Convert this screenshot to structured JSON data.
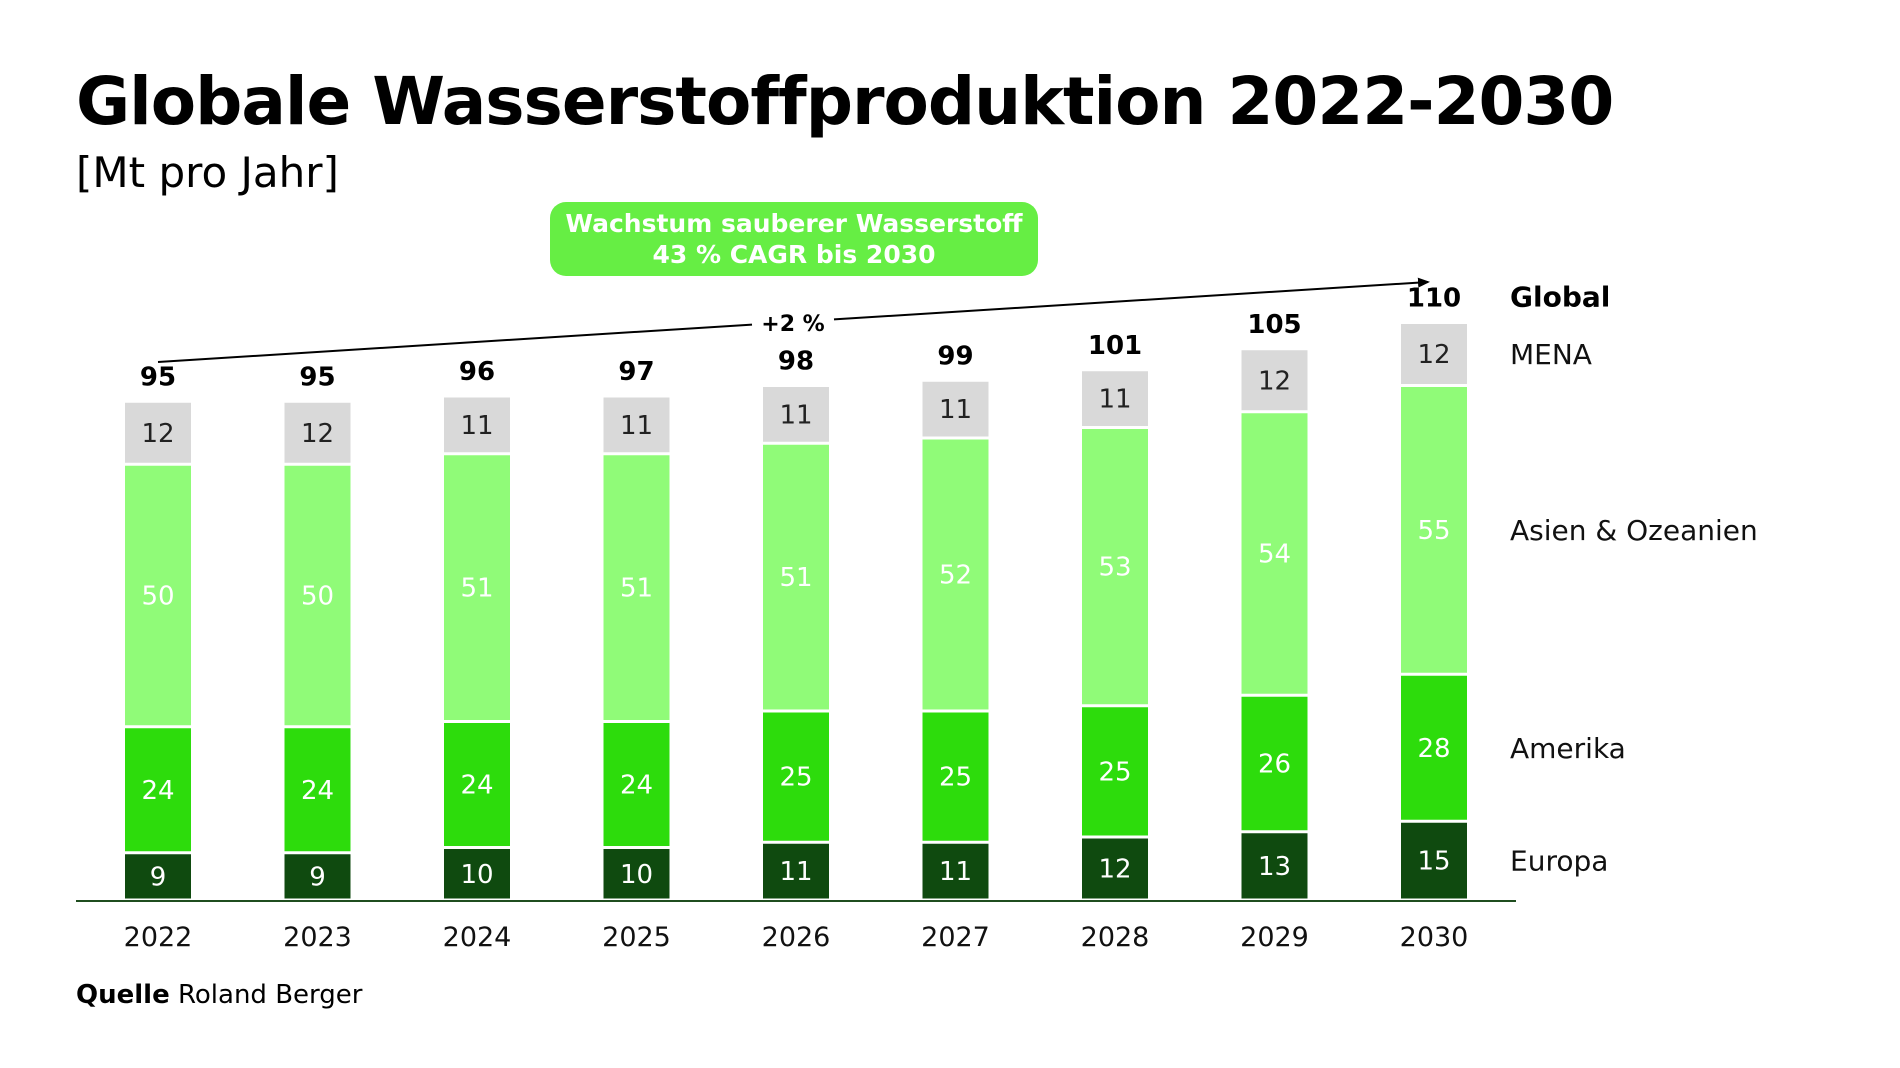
{
  "header": {
    "title": "Globale Wasserstoffproduktion 2022-2030",
    "subtitle": "[Mt pro Jahr]"
  },
  "callout": {
    "line1": "Wachstum sauberer Wasserstoff",
    "line2": "43 % CAGR bis 2030"
  },
  "footer": {
    "source_label": "Quelle",
    "source_value": "Roland Berger"
  },
  "colors": {
    "europa": "#0f4a0f",
    "amerika": "#2ddc0c",
    "asien": "#90fb78",
    "mena": "#d9d9d9",
    "callout": "#66ee44",
    "axis": "#1f4d1f"
  },
  "chart_data": {
    "type": "bar",
    "stacked": true,
    "title": "Globale Wasserstoffproduktion 2022-2030",
    "ylabel": "Mt pro Jahr",
    "categories": [
      "2022",
      "2023",
      "2024",
      "2025",
      "2026",
      "2027",
      "2028",
      "2029",
      "2030"
    ],
    "series": [
      {
        "name": "Europa",
        "values": [
          9,
          9,
          10,
          10,
          11,
          11,
          12,
          13,
          15
        ]
      },
      {
        "name": "Amerika",
        "values": [
          24,
          24,
          24,
          24,
          25,
          25,
          25,
          26,
          28
        ]
      },
      {
        "name": "Asien & Ozeanien",
        "values": [
          50,
          50,
          51,
          51,
          51,
          52,
          53,
          54,
          55
        ]
      },
      {
        "name": "MENA",
        "values": [
          12,
          12,
          11,
          11,
          11,
          11,
          11,
          12,
          12
        ]
      }
    ],
    "totals": [
      95,
      95,
      96,
      97,
      98,
      99,
      101,
      105,
      110
    ],
    "totals_label": "Global",
    "trend_annotation": "+2 %",
    "legend_position": "right"
  }
}
